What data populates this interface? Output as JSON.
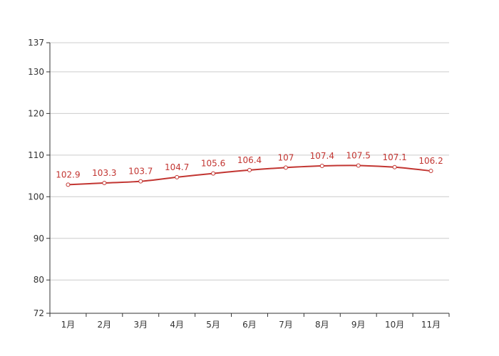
{
  "chart_data": {
    "type": "line",
    "title": "",
    "xlabel": "",
    "ylabel": "",
    "categories": [
      "1月",
      "2月",
      "3月",
      "4月",
      "5月",
      "6月",
      "7月",
      "8月",
      "9月",
      "10月",
      "11月"
    ],
    "series": [
      {
        "values": [
          102.9,
          103.3,
          103.7,
          104.7,
          105.6,
          106.4,
          107,
          107.4,
          107.5,
          107.1,
          106.2
        ]
      }
    ],
    "ylim": [
      72,
      137
    ],
    "yticks": [
      72,
      80,
      90,
      100,
      110,
      120,
      130,
      137
    ],
    "grid": true,
    "smooth": true,
    "colors": {
      "line": "#c23531",
      "grid": "#cccccc",
      "axis": "#333333",
      "label": "#c23531"
    }
  }
}
